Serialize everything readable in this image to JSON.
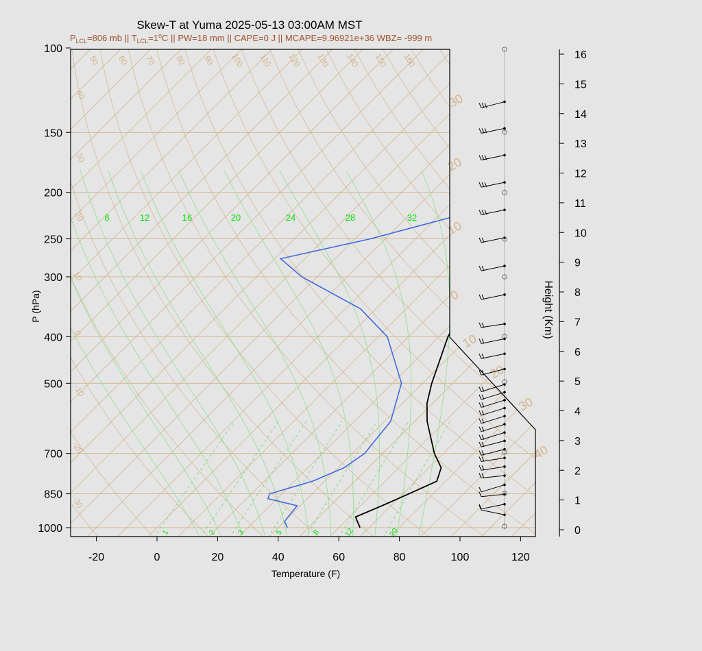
{
  "title": "Skew-T at Yuma 2025-05-13 03:00AM MST",
  "subtitle": {
    "p_lcl_symbol": "P",
    "p_lcl_sub": "LCL",
    "p_lcl_value": "=806 mb || T",
    "t_lcl_sub": "LCL",
    "t_lcl_value": "=1",
    "degree": "o",
    "rest": "C || PW=18 mm || CAPE=0 J || MCAPE=9.96921e+36 WBZ= -999 m"
  },
  "chart_data": {
    "type": "line",
    "title": "Skew-T at Yuma 2025-05-13 03:00AM MST",
    "xlabel": "Temperature (F)",
    "ylabel": "P (hPa)",
    "y2label": "Height (Km)",
    "xlim": [
      -28,
      125
    ],
    "ylim_pressure": [
      1000,
      100
    ],
    "x_ticks": [
      "-20",
      "0",
      "20",
      "40",
      "60",
      "80",
      "100",
      "120"
    ],
    "p_ticks": [
      "100",
      "150",
      "200",
      "250",
      "300",
      "400",
      "500",
      "700",
      "850",
      "1000"
    ],
    "height_ticks": [
      "0",
      "1",
      "2",
      "3",
      "4",
      "5",
      "6",
      "7",
      "8",
      "9",
      "10",
      "11",
      "12",
      "13",
      "14",
      "15",
      "16"
    ],
    "isotherm_labels": [
      "50",
      "60",
      "70",
      "80",
      "90",
      "100",
      "110",
      "120",
      "130",
      "140",
      "150",
      "160",
      "40",
      "30",
      "20",
      "10",
      "0",
      "-10",
      "-20",
      "-30",
      "30",
      "20",
      "10",
      "0",
      "10",
      "20",
      "30",
      "40"
    ],
    "adiabat_labels": [
      "8",
      "12",
      "16",
      "20",
      "24",
      "28",
      "32"
    ],
    "mixing_labels": [
      "1",
      "2",
      "3",
      "5",
      "8",
      "12",
      "20"
    ],
    "series": [
      {
        "name": "Temperature",
        "color": "#000000",
        "points": [
          {
            "p": 1000,
            "t": 67
          },
          {
            "p": 950,
            "t": 62
          },
          {
            "p": 900,
            "t": 67
          },
          {
            "p": 850,
            "t": 72
          },
          {
            "p": 800,
            "t": 77
          },
          {
            "p": 750,
            "t": 74
          },
          {
            "p": 700,
            "t": 67
          },
          {
            "p": 600,
            "t": 54
          },
          {
            "p": 550,
            "t": 48
          },
          {
            "p": 500,
            "t": 43
          },
          {
            "p": 400,
            "t": 33
          },
          {
            "p": 300,
            "t": 24
          },
          {
            "p": 250,
            "t": 17
          },
          {
            "p": 200,
            "t": 8
          },
          {
            "p": 175,
            "t": 8
          },
          {
            "p": 150,
            "t": 14
          },
          {
            "p": 125,
            "t": 28
          },
          {
            "p": 100,
            "t": 50
          }
        ]
      },
      {
        "name": "Dewpoint",
        "color": "#4169e1",
        "points": [
          {
            "p": 1000,
            "t": 43
          },
          {
            "p": 970,
            "t": 40
          },
          {
            "p": 900,
            "t": 39
          },
          {
            "p": 870,
            "t": 27
          },
          {
            "p": 850,
            "t": 26
          },
          {
            "p": 800,
            "t": 36
          },
          {
            "p": 750,
            "t": 42
          },
          {
            "p": 700,
            "t": 44
          },
          {
            "p": 600,
            "t": 42
          },
          {
            "p": 500,
            "t": 33
          },
          {
            "p": 400,
            "t": 13
          },
          {
            "p": 350,
            "t": -5
          },
          {
            "p": 300,
            "t": -35
          },
          {
            "p": 275,
            "t": -48
          },
          {
            "p": 250,
            "t": -25
          },
          {
            "p": 225,
            "t": -5
          },
          {
            "p": 200,
            "t": -3
          },
          {
            "p": 175,
            "t": -14
          },
          {
            "p": 150,
            "t": -18
          },
          {
            "p": 125,
            "t": -17
          },
          {
            "p": 100,
            "t": -3
          }
        ]
      }
    ],
    "wind_barbs": [
      {
        "h": 0.25,
        "spd": 5,
        "dir": 290
      },
      {
        "h": 0.5,
        "spd": 5,
        "dir": 250
      },
      {
        "h": 0.75,
        "spd": 5,
        "dir": 260
      },
      {
        "h": 1.0,
        "spd": 10,
        "dir": 240
      },
      {
        "h": 1.25,
        "spd": 15,
        "dir": 260
      },
      {
        "h": 1.5,
        "spd": 20,
        "dir": 255
      },
      {
        "h": 1.75,
        "spd": 20,
        "dir": 255
      },
      {
        "h": 2.0,
        "spd": 20,
        "dir": 245
      },
      {
        "h": 2.25,
        "spd": 20,
        "dir": 245
      },
      {
        "h": 2.5,
        "spd": 20,
        "dir": 240
      },
      {
        "h": 2.75,
        "spd": 20,
        "dir": 240
      },
      {
        "h": 3.0,
        "spd": 20,
        "dir": 240
      },
      {
        "h": 3.25,
        "spd": 20,
        "dir": 240
      },
      {
        "h": 3.5,
        "spd": 20,
        "dir": 240
      },
      {
        "h": 3.75,
        "spd": 20,
        "dir": 240
      },
      {
        "h": 4.0,
        "spd": 20,
        "dir": 240
      },
      {
        "h": 4.5,
        "spd": 20,
        "dir": 245
      },
      {
        "h": 5.0,
        "spd": 20,
        "dir": 250
      },
      {
        "h": 5.5,
        "spd": 20,
        "dir": 250
      },
      {
        "h": 6.0,
        "spd": 15,
        "dir": 255
      },
      {
        "h": 7.0,
        "spd": 20,
        "dir": 250
      },
      {
        "h": 8.0,
        "spd": 20,
        "dir": 250
      },
      {
        "h": 9.0,
        "spd": 20,
        "dir": 250
      },
      {
        "h": 10.0,
        "spd": 25,
        "dir": 250
      },
      {
        "h": 11.0,
        "spd": 25,
        "dir": 250
      },
      {
        "h": 12.0,
        "spd": 30,
        "dir": 250
      },
      {
        "h": 13.0,
        "spd": 30,
        "dir": 250
      },
      {
        "h": 14.0,
        "spd": 25,
        "dir": 245
      }
    ],
    "grid": true,
    "legend": "none"
  }
}
